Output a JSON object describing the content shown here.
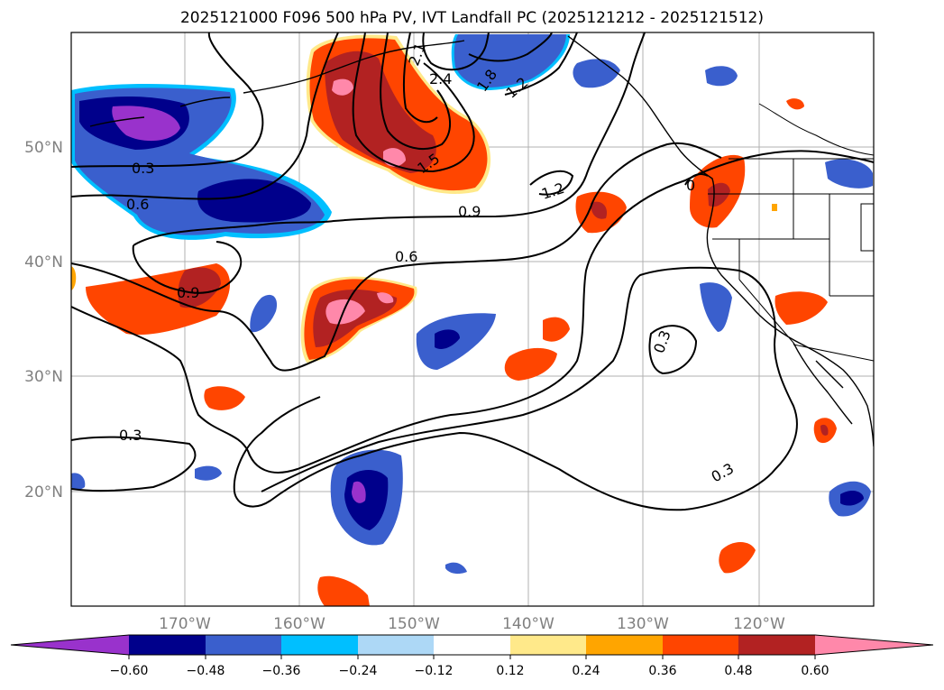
{
  "title": "2025121000 F096 500 hPa PV, IVT Landfall PC (2025121212 - 2025121512)",
  "map": {
    "lat_ticks": [
      "50°N",
      "40°N",
      "30°N",
      "20°N"
    ],
    "lon_ticks": [
      "170°W",
      "160°W",
      "150°W",
      "140°W",
      "130°W",
      "120°W"
    ],
    "grid": true,
    "frame_color": "#000000",
    "grid_color": "#b0b0b0"
  },
  "contour_labels": [
    "0.3",
    "0.6",
    "0.9",
    "0.6",
    "0.9",
    "1.2",
    "1.5",
    "1.8",
    "2.1",
    "2.4",
    "1.2",
    "0.3",
    "0.3",
    "0.3",
    "0"
  ],
  "colorbar": {
    "colors": [
      "#9932cc",
      "#00008b",
      "#3a5fcd",
      "#00bfff",
      "#add8f6",
      "#ffffff",
      "#ffe98a",
      "#ffa500",
      "#ff4500",
      "#b22222",
      "#ff88aa"
    ],
    "tick_labels": [
      "−0.60",
      "−0.48",
      "−0.36",
      "−0.24",
      "−0.12",
      "0.12",
      "0.24",
      "0.36",
      "0.48",
      "0.60"
    ]
  }
}
